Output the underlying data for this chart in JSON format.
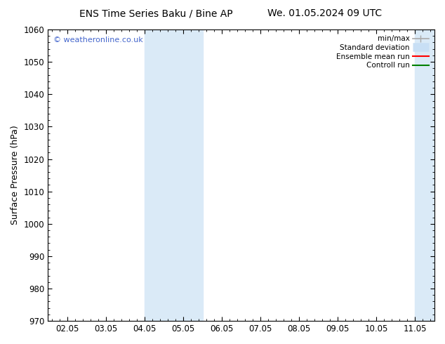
{
  "title_left": "ENS Time Series Baku / Bine AP",
  "title_right": "We. 01.05.2024 09 UTC",
  "ylabel": "Surface Pressure (hPa)",
  "ylim": [
    970,
    1060
  ],
  "yticks": [
    970,
    980,
    990,
    1000,
    1010,
    1020,
    1030,
    1040,
    1050,
    1060
  ],
  "xtick_labels": [
    "02.05",
    "03.05",
    "04.05",
    "05.05",
    "06.05",
    "07.05",
    "08.05",
    "09.05",
    "10.05",
    "11.05"
  ],
  "xtick_positions": [
    0,
    1,
    2,
    3,
    4,
    5,
    6,
    7,
    8,
    9
  ],
  "xlim": [
    -0.5,
    9.5
  ],
  "shade_band1_xmin": 2.0,
  "shade_band1_xmax": 3.5,
  "shade_band2_xmin": 9.0,
  "shade_band2_xmax": 9.5,
  "shade_color": "#daeaf7",
  "watermark": "© weatheronline.co.uk",
  "watermark_color": "#4466cc",
  "bg_color": "#ffffff",
  "title_fontsize": 10,
  "axis_fontsize": 9,
  "tick_fontsize": 8.5
}
